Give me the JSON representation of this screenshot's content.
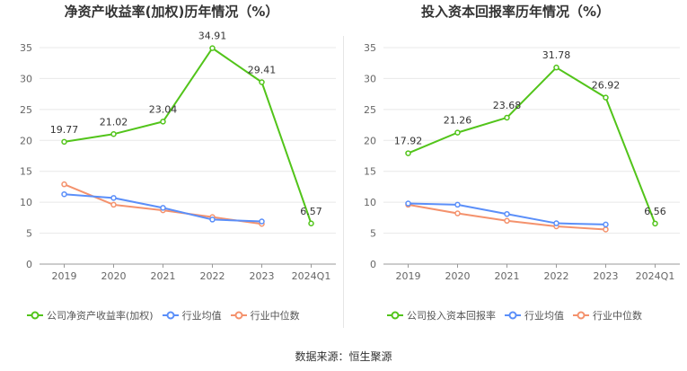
{
  "chart_data": [
    {
      "type": "line",
      "title": "净资产收益率(加权)历年情况（%）",
      "categories": [
        "2019",
        "2020",
        "2021",
        "2022",
        "2023",
        "2024Q1"
      ],
      "ylim": [
        0,
        35
      ],
      "yticks": [
        0,
        5,
        10,
        15,
        20,
        25,
        30,
        35
      ],
      "grid": true,
      "legend_position": "bottom",
      "series": [
        {
          "name": "公司净资产收益率(加权)",
          "color": "#52c41a",
          "labeled": true,
          "values": [
            19.77,
            21.02,
            23.04,
            34.91,
            29.41,
            6.57
          ]
        },
        {
          "name": "行业均值",
          "color": "#5b8ff9",
          "labeled": false,
          "values": [
            11.3,
            10.7,
            9.1,
            7.2,
            6.9,
            null
          ]
        },
        {
          "name": "行业中位数",
          "color": "#f4926d",
          "labeled": false,
          "values": [
            12.9,
            9.6,
            8.7,
            7.6,
            6.5,
            null
          ]
        }
      ]
    },
    {
      "type": "line",
      "title": "投入资本回报率历年情况（%）",
      "categories": [
        "2019",
        "2020",
        "2021",
        "2022",
        "2023",
        "2024Q1"
      ],
      "ylim": [
        0,
        35
      ],
      "yticks": [
        0,
        5,
        10,
        15,
        20,
        25,
        30,
        35
      ],
      "grid": true,
      "legend_position": "bottom",
      "series": [
        {
          "name": "公司投入资本回报率",
          "color": "#52c41a",
          "labeled": true,
          "values": [
            17.92,
            21.26,
            23.68,
            31.78,
            26.92,
            6.56
          ]
        },
        {
          "name": "行业均值",
          "color": "#5b8ff9",
          "labeled": false,
          "values": [
            9.8,
            9.6,
            8.1,
            6.6,
            6.4,
            null
          ]
        },
        {
          "name": "行业中位数",
          "color": "#f4926d",
          "labeled": false,
          "values": [
            9.6,
            8.2,
            7.0,
            6.1,
            5.6,
            null
          ]
        }
      ]
    }
  ],
  "source": "数据来源：恒生聚源"
}
